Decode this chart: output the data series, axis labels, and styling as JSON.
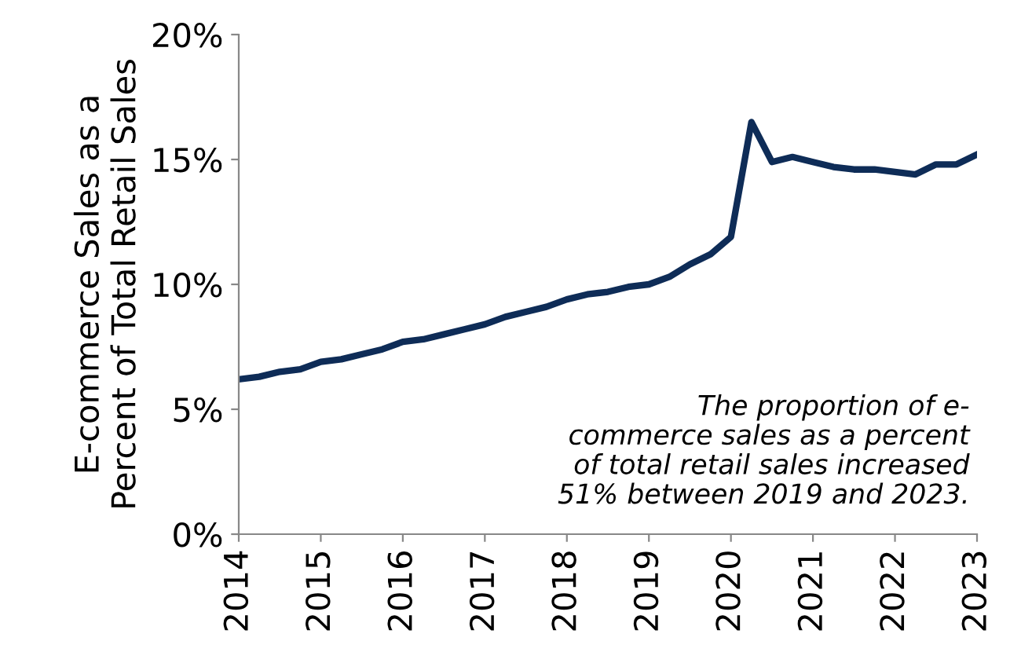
{
  "chart_data": {
    "type": "line",
    "ylabel": "E-commerce Sales as a\nPercent of Total Retail Sales",
    "x": [
      2014,
      2014.25,
      2014.5,
      2014.75,
      2015,
      2015.25,
      2015.5,
      2015.75,
      2016,
      2016.25,
      2016.5,
      2016.75,
      2017,
      2017.25,
      2017.5,
      2017.75,
      2018,
      2018.25,
      2018.5,
      2018.75,
      2019,
      2019.25,
      2019.5,
      2019.75,
      2020,
      2020.25,
      2020.5,
      2020.75,
      2021,
      2021.25,
      2021.5,
      2021.75,
      2022,
      2022.25,
      2022.5,
      2022.75,
      2023
    ],
    "series": [
      {
        "color": "#0e2c57",
        "values": [
          6.2,
          6.3,
          6.5,
          6.6,
          6.9,
          7.0,
          7.2,
          7.4,
          7.7,
          7.8,
          8.0,
          8.2,
          8.4,
          8.7,
          8.9,
          9.1,
          9.4,
          9.6,
          9.7,
          9.9,
          10.0,
          10.3,
          10.8,
          11.2,
          11.9,
          16.5,
          14.9,
          15.1,
          14.9,
          14.7,
          14.6,
          14.6,
          14.5,
          14.4,
          14.8,
          14.8,
          15.2
        ]
      }
    ],
    "xlim": [
      2014,
      2023
    ],
    "xticks": [
      2014,
      2015,
      2016,
      2017,
      2018,
      2019,
      2020,
      2021,
      2022,
      2023
    ],
    "ylim": [
      0,
      20
    ],
    "yticks": [
      {
        "value": 0,
        "label": "0%"
      },
      {
        "value": 5,
        "label": "5%"
      },
      {
        "value": 10,
        "label": "10%"
      },
      {
        "value": 15,
        "label": "15%"
      },
      {
        "value": 20,
        "label": "20%"
      }
    ],
    "annotations": [
      "The proportion of e-\ncommerce sales as a percent\nof total retail sales increased\n51% between 2019 and 2023."
    ],
    "grid": false,
    "legend": false,
    "marker": "none",
    "line_style": "solid"
  }
}
